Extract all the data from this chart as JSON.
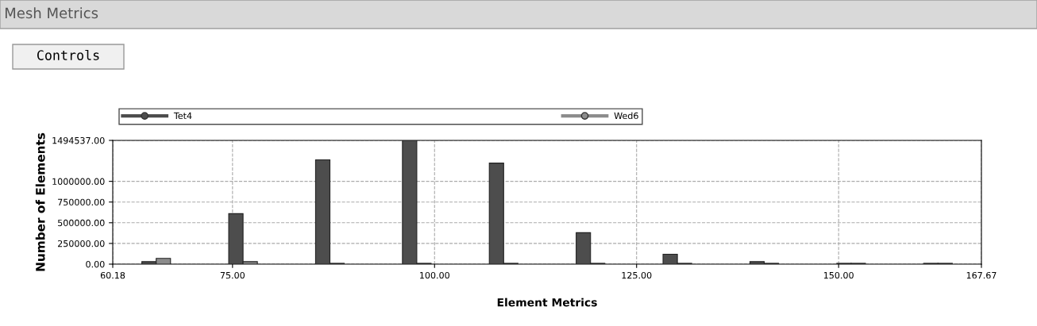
{
  "chart_data": {
    "type": "histogram",
    "title": "Mesh Metrics",
    "xlabel": "Element Metrics",
    "ylabel": "Number of Elements",
    "annotations": [
      "Controls"
    ],
    "bins": [
      60.18,
      70.929,
      81.678,
      92.427,
      103.176,
      113.925,
      124.674,
      135.423,
      146.172,
      156.921,
      167.67
    ],
    "series": [
      {
        "name": "Tet4",
        "color": "#4d4d4d",
        "values": [
          30000,
          610000,
          1260000,
          1494537,
          1220000,
          380000,
          120000,
          30000,
          10000,
          10000
        ]
      },
      {
        "name": "Wed6",
        "color": "#8c8c8c",
        "values": [
          70000,
          30000,
          10000,
          10000,
          10000,
          10000,
          10000,
          10000,
          10000,
          10000
        ]
      }
    ],
    "xlim": [
      60.18,
      167.67
    ],
    "xticks": [
      {
        "value": 60.18,
        "label": "60.18"
      },
      {
        "value": 75,
        "label": "75.00"
      },
      {
        "value": 100,
        "label": "100.00"
      },
      {
        "value": 125,
        "label": "125.00"
      },
      {
        "value": 150,
        "label": "150.00"
      },
      {
        "value": 167.67,
        "label": "167.67"
      }
    ],
    "ylim": [
      0,
      1494537
    ],
    "yticks": [
      {
        "value": 0,
        "label": "0.00"
      },
      {
        "value": 250000,
        "label": "250000.00"
      },
      {
        "value": 500000,
        "label": "500000.00"
      },
      {
        "value": 750000,
        "label": "750000.00"
      },
      {
        "value": 1000000,
        "label": "1000000.00"
      },
      {
        "value": 1494537,
        "label": "1494537.00"
      }
    ],
    "grid": true,
    "legend": "top"
  }
}
